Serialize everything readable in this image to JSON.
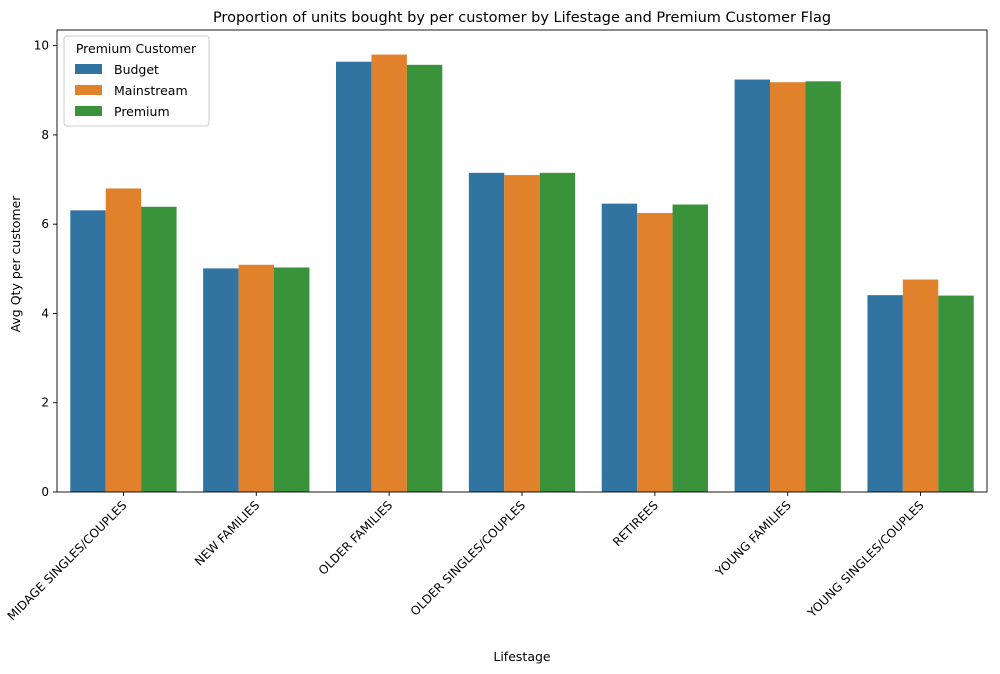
{
  "chart_data": {
    "type": "bar",
    "title": "Proportion of units bought by per customer by Lifestage and Premium Customer Flag",
    "xlabel": "Lifestage",
    "ylabel": "Avg Qty per customer",
    "ylim": [
      0,
      10.35
    ],
    "yticks": [
      0,
      2,
      4,
      6,
      8,
      10
    ],
    "grid": false,
    "legend": {
      "title": "Premium Customer",
      "placement": "top-left"
    },
    "categories": [
      "MIDAGE SINGLES/COUPLES",
      "NEW FAMILIES",
      "OLDER FAMILIES",
      "OLDER SINGLES/COUPLES",
      "RETIREES",
      "YOUNG FAMILIES",
      "YOUNG SINGLES/COUPLES"
    ],
    "series": [
      {
        "name": "Budget",
        "color": "#3274a1",
        "values": [
          6.31,
          5.01,
          9.64,
          7.15,
          6.46,
          9.24,
          4.41
        ]
      },
      {
        "name": "Mainstream",
        "color": "#e1812c",
        "values": [
          6.8,
          5.09,
          9.8,
          7.1,
          6.25,
          9.18,
          4.76
        ]
      },
      {
        "name": "Premium",
        "color": "#3a923a",
        "values": [
          6.39,
          5.03,
          9.57,
          7.15,
          6.44,
          9.2,
          4.4
        ]
      }
    ]
  }
}
